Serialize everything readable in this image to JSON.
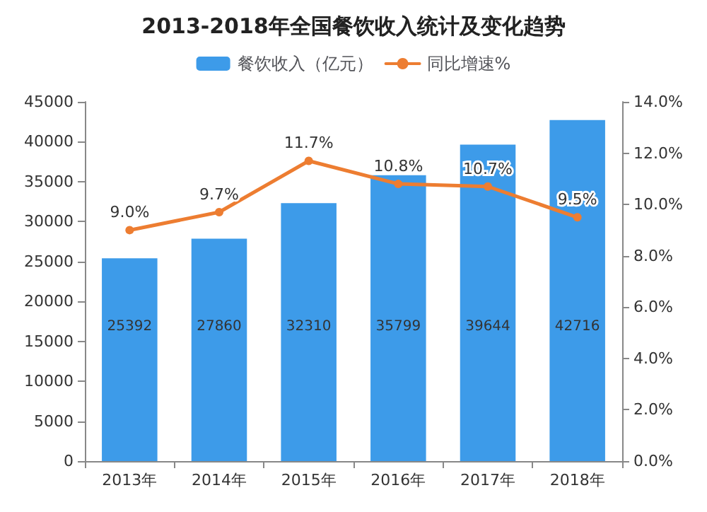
{
  "chart_data": {
    "type": "bar",
    "title": "2013-2018年全国餐饮收入统计及变化趋势",
    "categories": [
      "2013年",
      "2014年",
      "2015年",
      "2016年",
      "2017年",
      "2018年"
    ],
    "series": [
      {
        "name": "餐饮收入（亿元）",
        "color": "#3d9be9",
        "values": [
          25392,
          27860,
          32310,
          35799,
          39644,
          42716
        ],
        "value_labels": [
          "25392",
          "27860",
          "32310",
          "35799",
          "39644",
          "42716"
        ]
      },
      {
        "name": "同比增速%",
        "type": "line",
        "axis": "y2",
        "color": "#ed7d31",
        "values": [
          9.0,
          9.7,
          11.7,
          10.8,
          10.7,
          9.5
        ],
        "value_labels": [
          "9.0%",
          "9.7%",
          "11.7%",
          "10.8%",
          "10.7%",
          "9.5%"
        ]
      }
    ],
    "ylim": [
      0,
      45000
    ],
    "yticks": [
      0,
      5000,
      10000,
      15000,
      20000,
      25000,
      30000,
      35000,
      40000,
      45000
    ],
    "y2lim": [
      0,
      14
    ],
    "y2ticks": [
      {
        "value": 0,
        "label": "0.0%"
      },
      {
        "value": 2,
        "label": "2.0%"
      },
      {
        "value": 4,
        "label": "4.0%"
      },
      {
        "value": 6,
        "label": "6.0%"
      },
      {
        "value": 8,
        "label": "8.0%"
      },
      {
        "value": 10,
        "label": "10.0%"
      },
      {
        "value": 12,
        "label": "12.0%"
      },
      {
        "value": 14,
        "label": "14.0%"
      }
    ],
    "grid": false,
    "legend": "top",
    "marker": "circle",
    "line_style": "solid"
  }
}
